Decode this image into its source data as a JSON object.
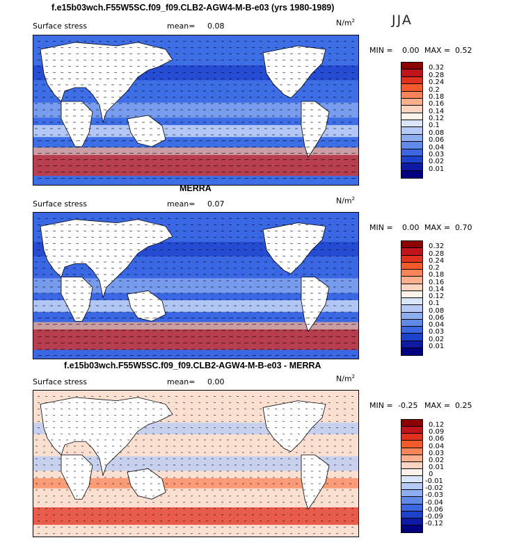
{
  "season": "JJA",
  "panels": [
    {
      "title": "f.e15b03wch.F55W5SC.f09_f09.CLB2-AGW4-M-B-e03 (yrs 1980-1989)",
      "variable": "Surface stress",
      "mean_label": "mean=",
      "mean_value": "0.08",
      "units": "N/m",
      "units_sup": "2",
      "min_label": "MIN =",
      "min_value": "0.00",
      "max_label": "MAX =",
      "max_value": "0.52",
      "colorbar": [
        "0.32",
        "0.28",
        "0.24",
        "0.2",
        "0.18",
        "0.16",
        "0.14",
        "0.12",
        "0.1",
        "0.08",
        "0.06",
        "0.04",
        "0.03",
        "0.02",
        "0.01"
      ],
      "colors": [
        "#8b0000",
        "#c0141a",
        "#e0301e",
        "#f35a2c",
        "#f8855a",
        "#fbaf8c",
        "#fdd5c0",
        "#fdf3ea",
        "#d9e6fb",
        "#b5cbf6",
        "#8daef0",
        "#5f8ae8",
        "#3a66e0",
        "#1e42cc",
        "#0c1aa6",
        "#000080"
      ],
      "map": {
        "bg": "#3e6ee6"
      }
    },
    {
      "title": "MERRA",
      "variable": "Surface stress",
      "mean_label": "mean=",
      "mean_value": "0.07",
      "units": "N/m",
      "units_sup": "2",
      "min_label": "MIN =",
      "min_value": "0.00",
      "max_label": "MAX =",
      "max_value": "0.70",
      "colorbar": [
        "0.32",
        "0.28",
        "0.24",
        "0.2",
        "0.18",
        "0.16",
        "0.14",
        "0.12",
        "0.1",
        "0.08",
        "0.06",
        "0.04",
        "0.03",
        "0.02",
        "0.01"
      ],
      "colors": [
        "#8b0000",
        "#c0141a",
        "#e0301e",
        "#f35a2c",
        "#f8855a",
        "#fbaf8c",
        "#fdd5c0",
        "#fdf3ea",
        "#d9e6fb",
        "#b5cbf6",
        "#8daef0",
        "#5f8ae8",
        "#3a66e0",
        "#1e42cc",
        "#0c1aa6",
        "#000080"
      ],
      "map": {
        "bg": "#3a68e4"
      }
    },
    {
      "title": "f.e15b03wch.F55W5SC.f09_f09.CLB2-AGW4-M-B-e03 - MERRA",
      "variable": "Surface stress",
      "mean_label": "mean=",
      "mean_value": "0.00",
      "units": "N/m",
      "units_sup": "2",
      "min_label": "MIN =",
      "min_value": "-0.25",
      "max_label": "MAX =",
      "max_value": "0.25",
      "colorbar": [
        "0.12",
        "0.09",
        "0.06",
        "0.04",
        "0.03",
        "0.02",
        "0.01",
        "0",
        "-0.01",
        "-0.02",
        "-0.03",
        "-0.04",
        "-0.06",
        "-0.09",
        "-0.12"
      ],
      "colors": [
        "#8b0000",
        "#c0141a",
        "#e0301e",
        "#f35a2c",
        "#f8855a",
        "#fbaf8c",
        "#fdd5c0",
        "#fdf3ea",
        "#d9e6fb",
        "#b5cbf6",
        "#8daef0",
        "#5f8ae8",
        "#3a66e0",
        "#1e42cc",
        "#0c1aa6",
        "#000080"
      ],
      "map": {
        "bg": "#fbe0d2"
      }
    }
  ]
}
